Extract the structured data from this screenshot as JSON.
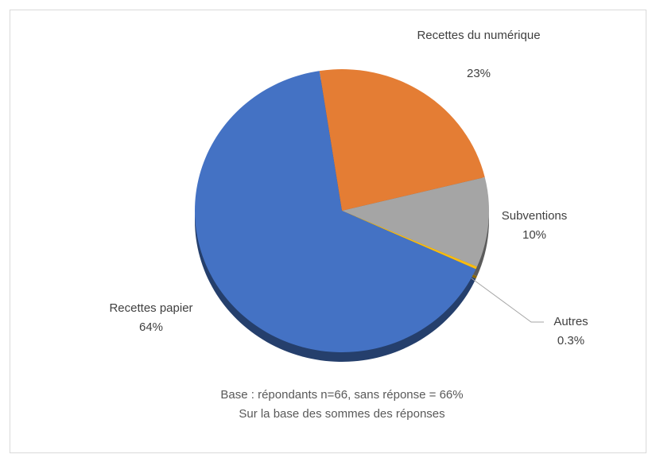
{
  "chart_data": {
    "type": "pie",
    "categories": [
      "Recettes du numérique",
      "Subventions",
      "Autres",
      "Recettes papier"
    ],
    "values": [
      23,
      10,
      0.3,
      64
    ],
    "value_labels": [
      "23%",
      "10%",
      "0.3%",
      "64%"
    ],
    "colors": [
      "#e47d34",
      "#a5a5a5",
      "#f9bc0f",
      "#4472c4"
    ],
    "notes": [
      "Base : répondants n=66, sans réponse = 66%",
      "Sur la base des sommes des réponses"
    ]
  }
}
